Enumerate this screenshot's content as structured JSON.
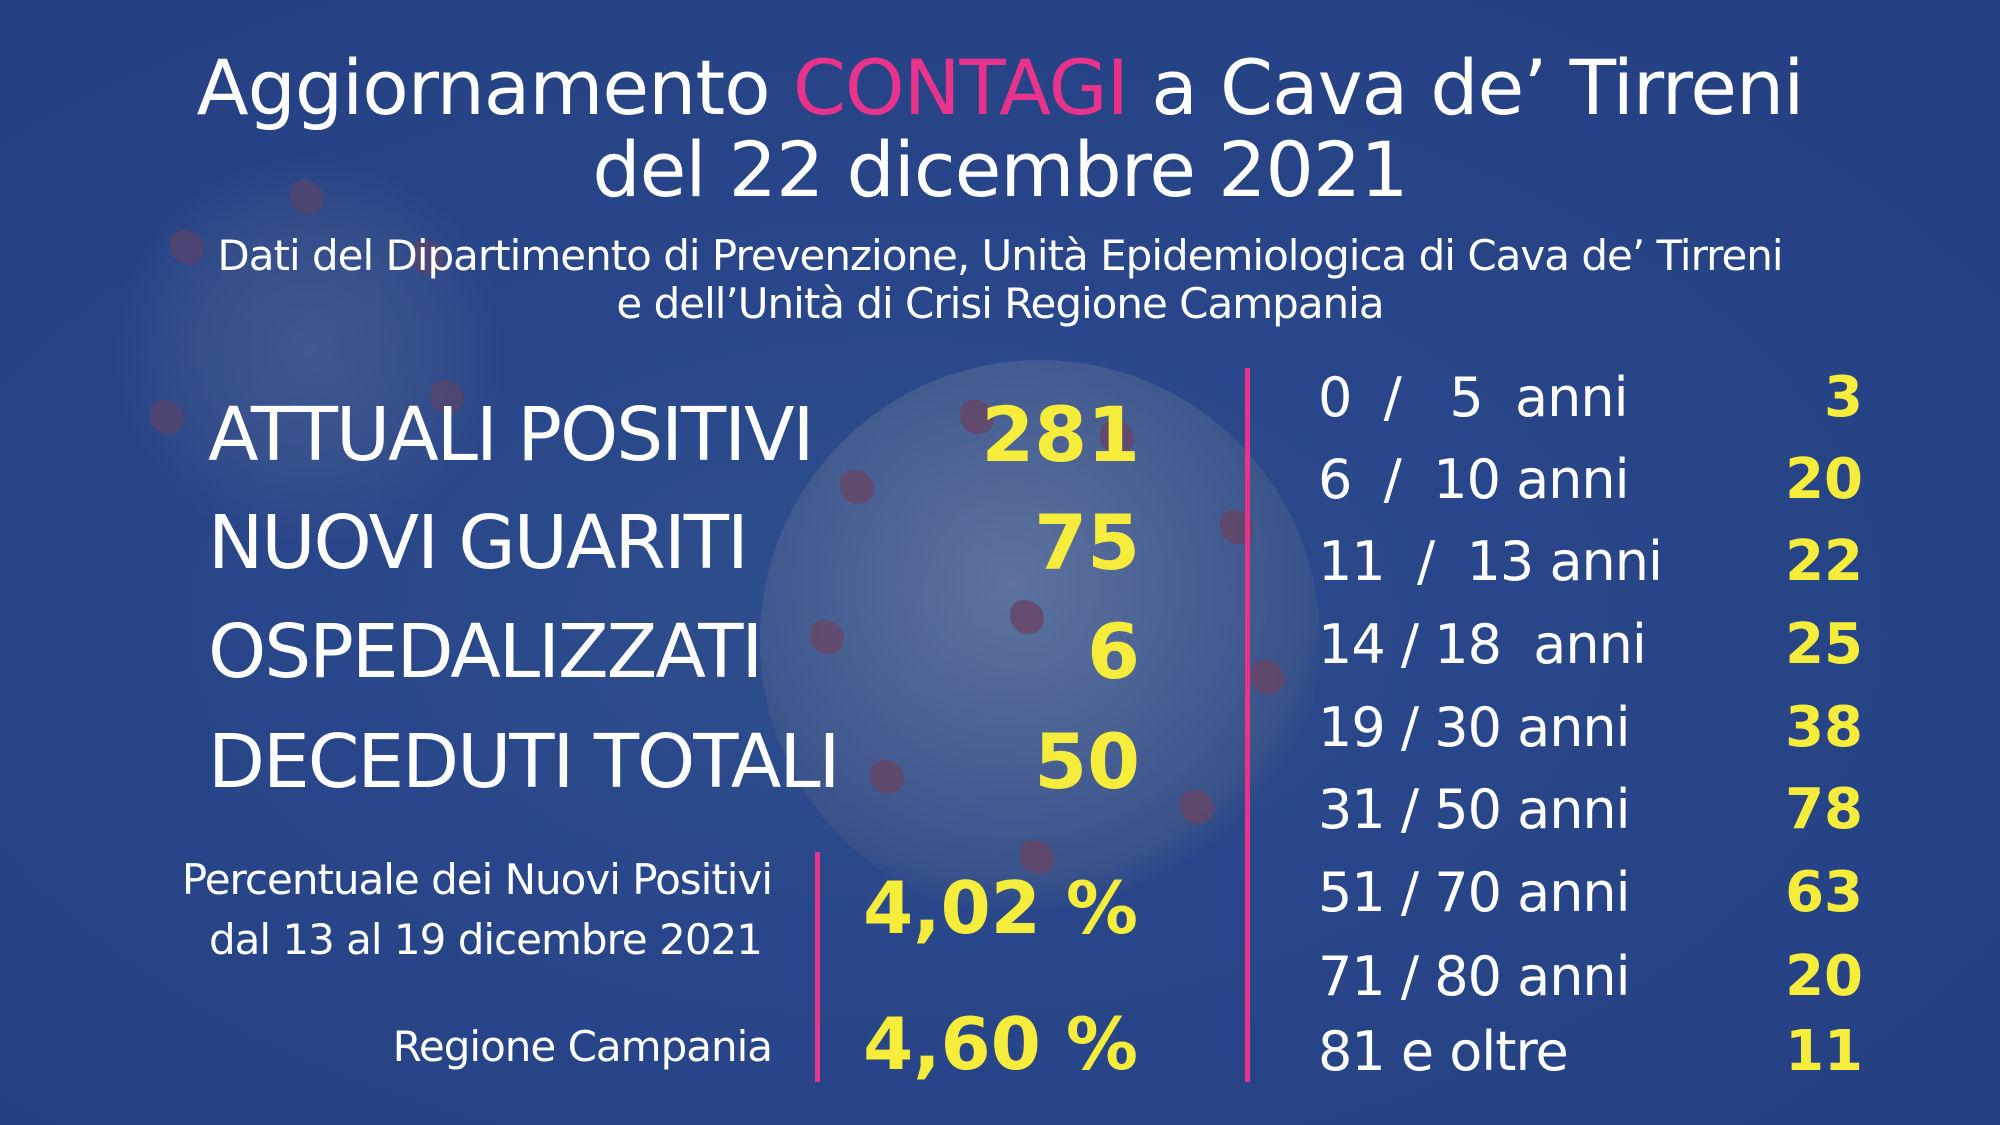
{
  "header": {
    "title_prefix": "Aggiornamento",
    "title_highlight": "CONTAGI",
    "title_suffix": "a Cava de’ Tirreni",
    "title_line2": "del 22 dicembre 2021",
    "subtitle_line1": "Dati del Dipartimento di Prevenzione, Unità Epidemiologica di Cava de’ Tirreni",
    "subtitle_line2": "e dell’Unità di Crisi Regione Campania"
  },
  "stats": [
    {
      "label": "ATTUALI POSITIVI",
      "value": "281"
    },
    {
      "label": "NUOVI GUARITI",
      "value": "75"
    },
    {
      "label": "OSPEDALIZZATI",
      "value": "6"
    },
    {
      "label": "DECEDUTI TOTALI",
      "value": "50"
    }
  ],
  "percentages": {
    "local_label_line1": "Percentuale dei Nuovi Positivi",
    "local_label_line2": "dal 13 al 19 dicembre 2021",
    "local_value": "4,02 %",
    "region_label": "Regione Campania",
    "region_value": "4,60 %"
  },
  "age_groups": [
    {
      "label": "0  /   5  anni",
      "value": "3"
    },
    {
      "label": "6  /  10 anni",
      "value": "20"
    },
    {
      "label": "11  /  13 anni",
      "value": "22"
    },
    {
      "label": "14 / 18  anni",
      "value": "25"
    },
    {
      "label": "19 / 30 anni",
      "value": "38"
    },
    {
      "label": "31 / 50 anni",
      "value": "78"
    },
    {
      "label": "51 / 70 anni",
      "value": "63"
    },
    {
      "label": "71 / 80 anni",
      "value": "20"
    },
    {
      "label": "81 e oltre",
      "value": "11"
    }
  ],
  "colors": {
    "background": "#284689",
    "accent_pink": "#e8338d",
    "value_yellow": "#f5ec3b",
    "text_white": "#ffffff"
  }
}
